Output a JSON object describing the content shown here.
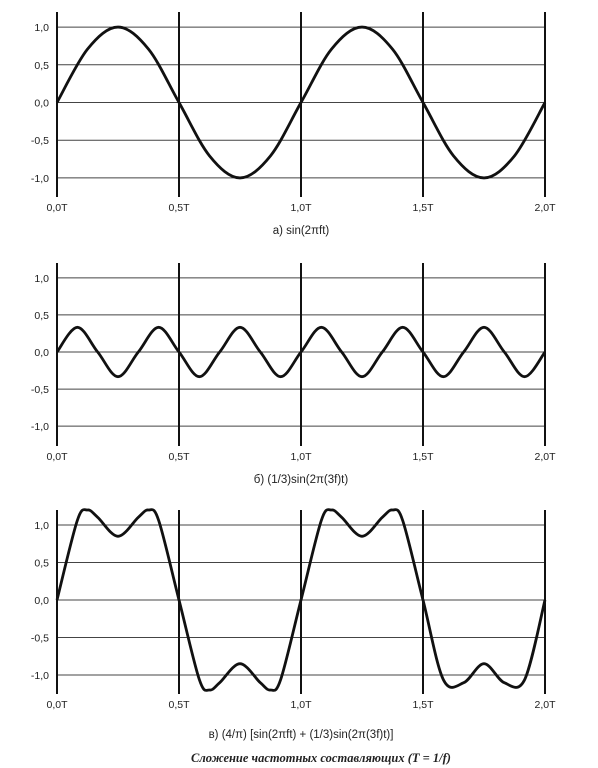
{
  "chart_data": [
    {
      "type": "line",
      "subtitle": "а) sin(2πft)",
      "x_ticks": [
        "0,0T",
        "0,5T",
        "1,0T",
        "1,5T",
        "2,0T"
      ],
      "y_ticks": [
        "1,0",
        "0,5",
        "0,0",
        "-0,5",
        "-1,0"
      ],
      "xlim": [
        0,
        2
      ],
      "ylim": [
        -1.2,
        1.2
      ],
      "grid": true,
      "series": [
        {
          "x": [
            0,
            0.125,
            0.25,
            0.375,
            0.5,
            0.625,
            0.75,
            0.875,
            1.0,
            1.125,
            1.25,
            1.375,
            1.5,
            1.625,
            1.75,
            1.875,
            2.0
          ],
          "y": [
            0,
            0.707,
            1.0,
            0.707,
            0,
            -0.707,
            -1.0,
            -0.707,
            0,
            0.707,
            1.0,
            0.707,
            0,
            -0.707,
            -1.0,
            -0.707,
            0
          ]
        }
      ]
    },
    {
      "type": "line",
      "subtitle": "б) (1/3)sin(2π(3f)t)",
      "x_ticks": [
        "0,0T",
        "0,5T",
        "1,0T",
        "1,5T",
        "2,0T"
      ],
      "y_ticks": [
        "1,0",
        "0,5",
        "0,0",
        "-0,5",
        "-1,0"
      ],
      "xlim": [
        0,
        2
      ],
      "ylim": [
        -1.2,
        1.2
      ],
      "grid": true,
      "series": [
        {
          "x": [
            0,
            0.0833,
            0.1667,
            0.25,
            0.3333,
            0.4167,
            0.5,
            0.5833,
            0.6667,
            0.75,
            0.8333,
            0.9167,
            1.0,
            1.0833,
            1.1667,
            1.25,
            1.3333,
            1.4167,
            1.5,
            1.5833,
            1.6667,
            1.75,
            1.8333,
            1.9167,
            2.0
          ],
          "y": [
            0,
            0.333,
            0,
            -0.333,
            0,
            0.333,
            0,
            -0.333,
            0,
            0.333,
            0,
            -0.333,
            0,
            0.333,
            0,
            -0.333,
            0,
            0.333,
            0,
            -0.333,
            0,
            0.333,
            0,
            -0.333,
            0
          ]
        }
      ]
    },
    {
      "type": "line",
      "subtitle": "в) (4/π) [sin(2πft) + (1/3)sin(2π(3f)t)]",
      "x_ticks": [
        "0,0T",
        "0,5T",
        "1,0T",
        "1,5T",
        "2,0T"
      ],
      "y_ticks": [
        "1,0",
        "0,5",
        "0,0",
        "-0,5",
        "-1,0"
      ],
      "xlim": [
        0,
        2
      ],
      "ylim": [
        -1.2,
        1.2
      ],
      "grid": true,
      "series": [
        {
          "x": [
            0,
            0.0833,
            0.125,
            0.1667,
            0.25,
            0.3333,
            0.375,
            0.4167,
            0.5,
            0.5833,
            0.625,
            0.6667,
            0.75,
            0.8333,
            0.875,
            0.9167,
            1.0,
            1.0833,
            1.125,
            1.1667,
            1.25,
            1.3333,
            1.375,
            1.4167,
            1.5,
            1.5833,
            1.6667,
            1.75,
            1.8333,
            1.9167,
            2.0
          ],
          "y": [
            0,
            1.061,
            1.2,
            1.103,
            0.849,
            1.103,
            1.2,
            1.061,
            0,
            -1.061,
            -1.2,
            -1.103,
            -0.849,
            -1.103,
            -1.2,
            -1.061,
            0,
            1.061,
            1.2,
            1.103,
            0.849,
            1.103,
            1.2,
            1.061,
            0,
            -1.061,
            -1.103,
            -0.849,
            -1.103,
            -1.061,
            0
          ]
        }
      ]
    }
  ],
  "caption": "Сложение частотных составляющих (T = 1/f)"
}
